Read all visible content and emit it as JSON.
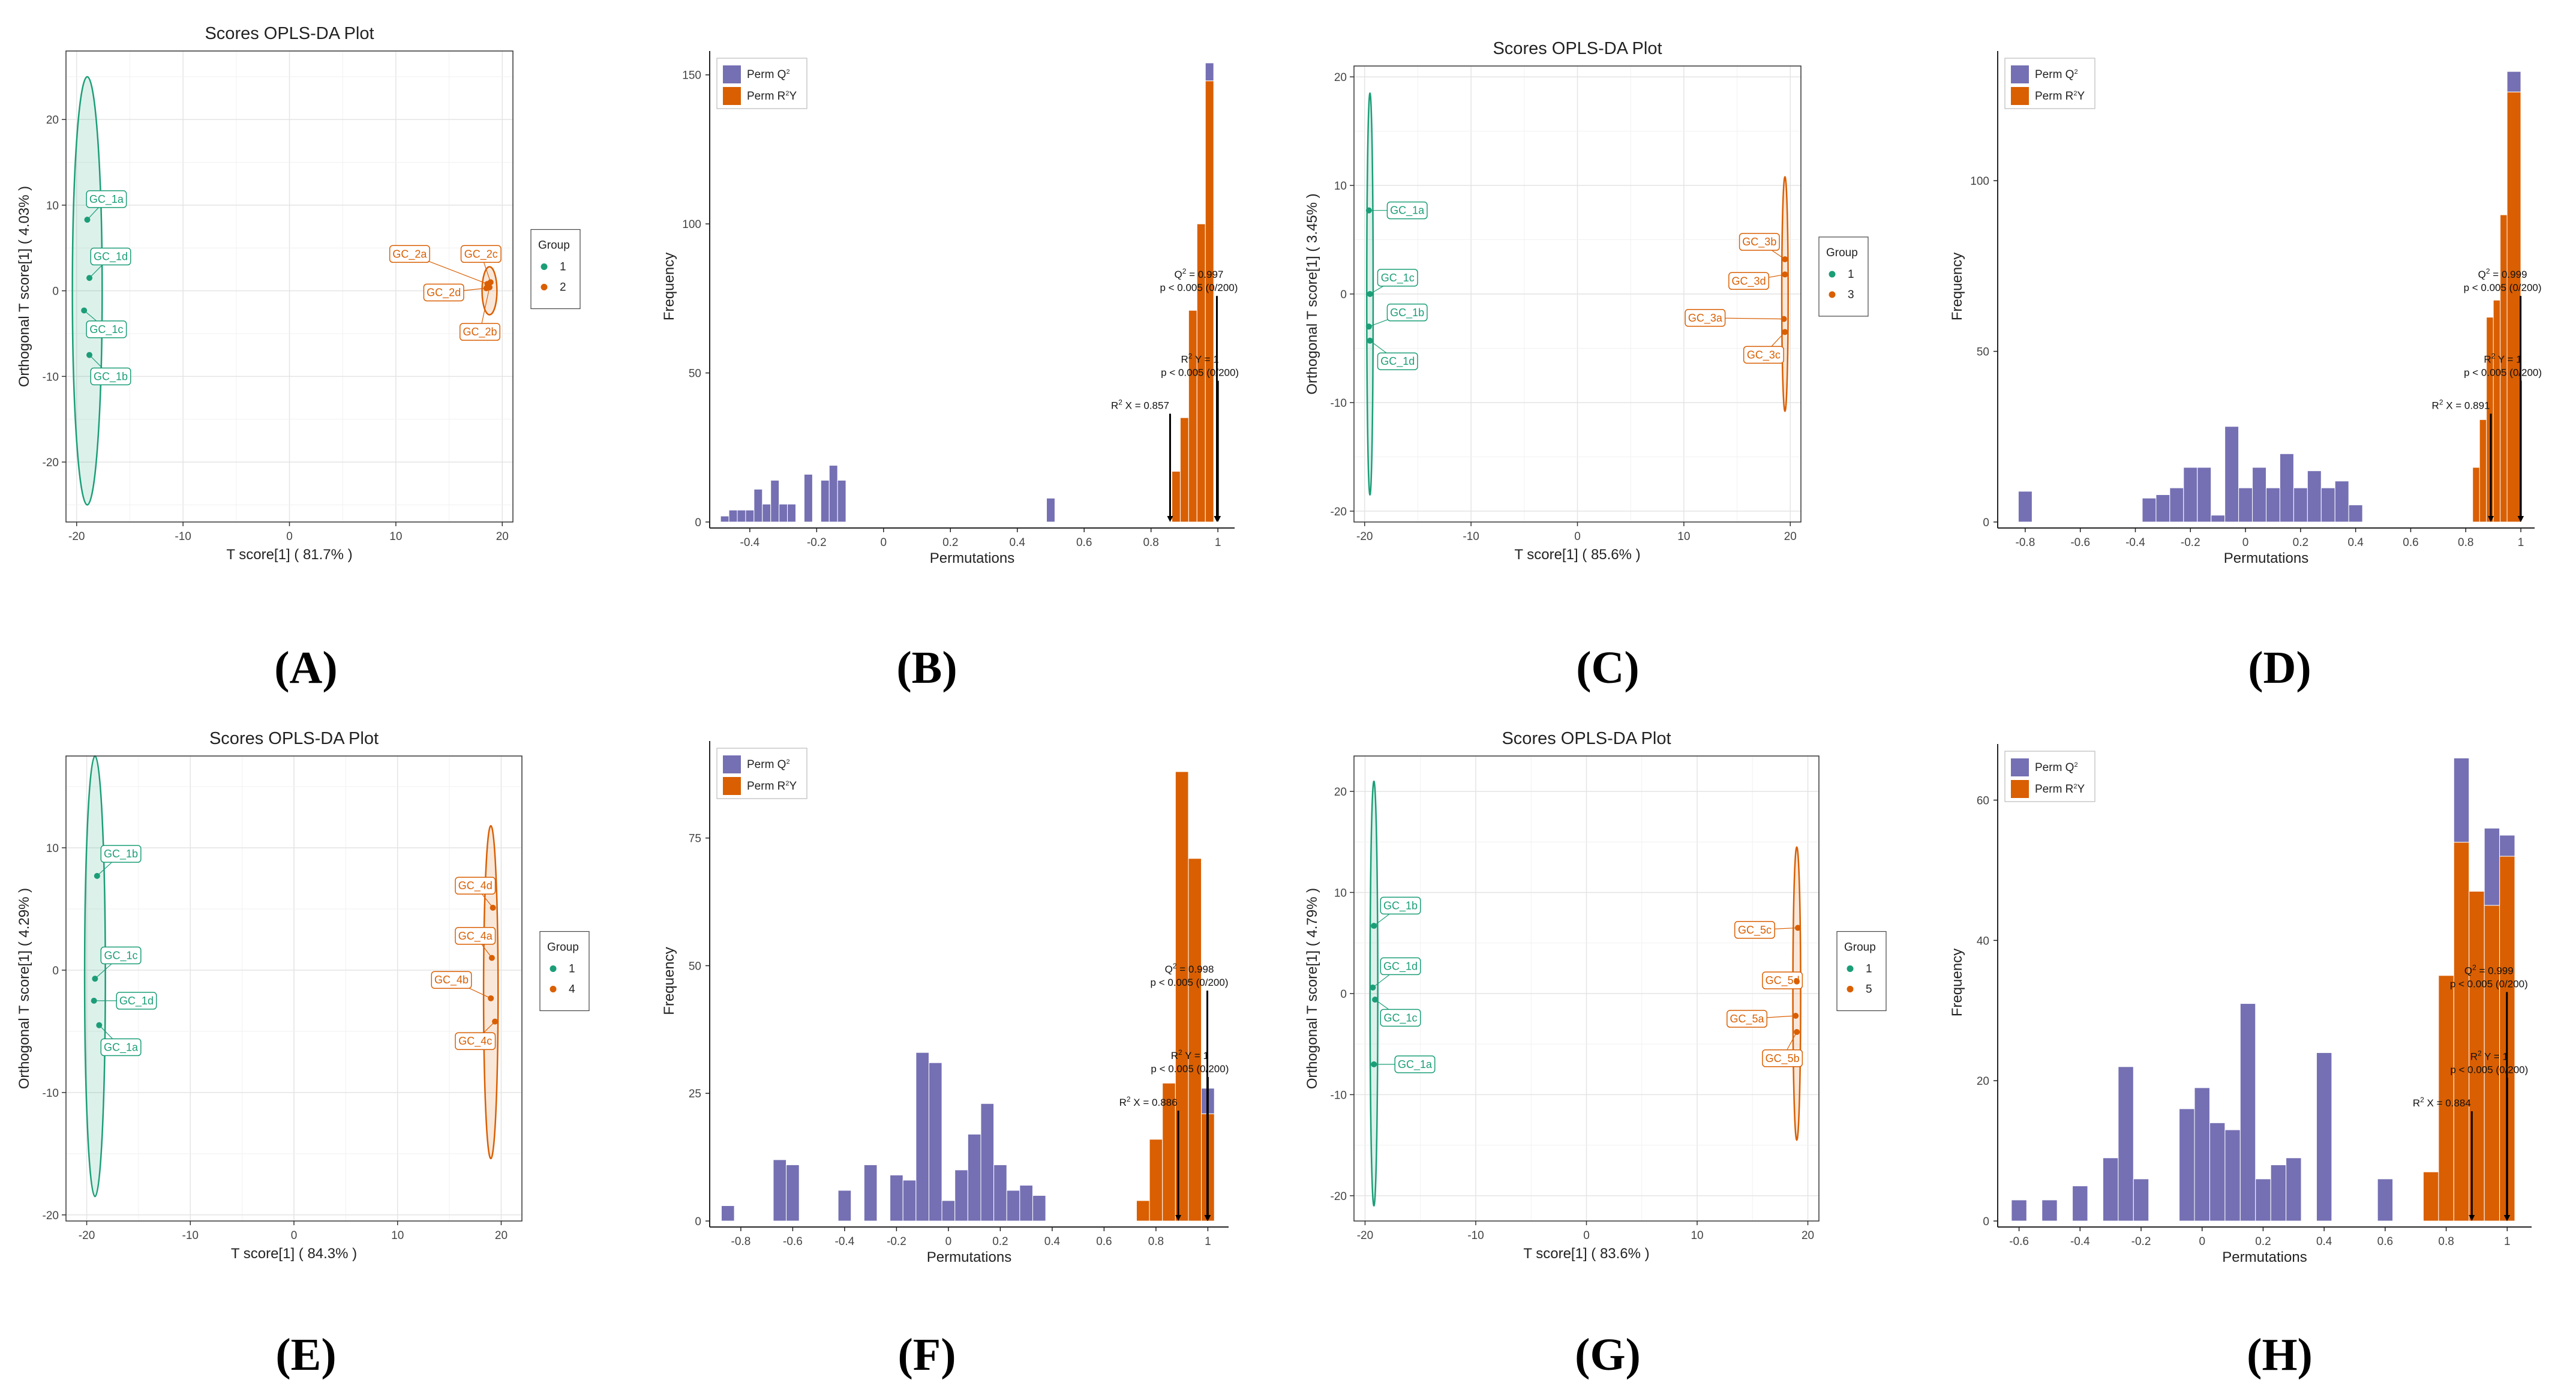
{
  "colors": {
    "group1": "#1b9e77",
    "groupB": "#d95f02",
    "permQ2": "#7570b3",
    "permR2Y": "#d95f02"
  },
  "captions": [
    "(A)",
    "(B)",
    "(C)",
    "(D)",
    "(E)",
    "(F)",
    "(G)",
    "(H)"
  ],
  "chart_data": [
    {
      "type": "scatter",
      "panel": "A",
      "title": "Scores OPLS-DA Plot",
      "xlabel": "T score[1] ( 81.7% )",
      "ylabel": "Orthogonal T score[1] ( 4.03% )",
      "xlim": [
        -21,
        21
      ],
      "ylim": [
        -27,
        28
      ],
      "xticks": [
        -20,
        -10,
        0,
        10,
        20
      ],
      "yticks": [
        -20,
        -10,
        0,
        10,
        20
      ],
      "legend": {
        "title": "Group",
        "entries": [
          "1",
          "2"
        ],
        "position": "right"
      },
      "grid": true,
      "ellipses": [
        {
          "group": 0,
          "cx": -19,
          "cy": 0,
          "rx": 1.4,
          "ry": 25
        },
        {
          "group": 1,
          "cx": 18.8,
          "cy": 0,
          "rx": 0.7,
          "ry": 2.8
        }
      ],
      "points": [
        {
          "label": "GC_1a",
          "x": -19,
          "y": 8.3,
          "group": 0,
          "lx": -17.2,
          "ly": 10.7
        },
        {
          "label": "GC_1d",
          "x": -18.8,
          "y": 1.5,
          "group": 0,
          "lx": -16.8,
          "ly": 4
        },
        {
          "label": "GC_1c",
          "x": -19.3,
          "y": -2.3,
          "group": 0,
          "lx": -17.2,
          "ly": -4.5
        },
        {
          "label": "GC_1b",
          "x": -18.8,
          "y": -7.5,
          "group": 0,
          "lx": -16.8,
          "ly": -10
        },
        {
          "label": "GC_2a",
          "x": 18.6,
          "y": 0.8,
          "group": 1,
          "lx": 11.3,
          "ly": 4.3
        },
        {
          "label": "GC_2c",
          "x": 18.9,
          "y": 1,
          "group": 1,
          "lx": 18,
          "ly": 4.3
        },
        {
          "label": "GC_2d",
          "x": 18.5,
          "y": 0.3,
          "group": 1,
          "lx": 14.5,
          "ly": -0.2
        },
        {
          "label": "GC_2b",
          "x": 18.8,
          "y": 0.4,
          "group": 1,
          "lx": 17.9,
          "ly": -4.8
        }
      ]
    },
    {
      "type": "bar",
      "panel": "B",
      "xlabel": "Permutations",
      "ylabel": "Frequency",
      "xlim": [
        -0.52,
        1.05
      ],
      "ylim": [
        0,
        158
      ],
      "xticks": [
        -0.4,
        -0.2,
        0.0,
        0.2,
        0.4,
        0.6,
        0.8,
        1.0
      ],
      "yticks": [
        0,
        50,
        100,
        150
      ],
      "binwidth": 0.025,
      "legend": {
        "entries": [
          "Perm Q",
          "Perm R"
        ],
        "position": "top-left"
      },
      "series": [
        {
          "name": "Perm Q2",
          "x": [
            -0.475,
            -0.45,
            -0.425,
            -0.4,
            -0.375,
            -0.35,
            -0.325,
            -0.3,
            -0.275,
            -0.25,
            -0.225,
            -0.2,
            -0.175,
            -0.15,
            -0.125,
            -0.1,
            -0.075,
            -0.05,
            -0.025,
            0.0,
            0.025,
            0.05,
            0.075,
            0.1,
            0.125,
            0.15,
            0.175,
            0.2,
            0.225,
            0.25,
            0.275,
            0.3,
            0.325,
            0.35,
            0.375,
            0.4,
            0.425,
            0.45,
            0.475,
            0.5,
            0.975
          ],
          "values": [
            2,
            4,
            4,
            4,
            11,
            6,
            14,
            6,
            6,
            0,
            16,
            0,
            14,
            19,
            14,
            0,
            0,
            0,
            0,
            0,
            0,
            0,
            0,
            0,
            0,
            0,
            0,
            0,
            0,
            0,
            0,
            0,
            0,
            0,
            0,
            0,
            0,
            0,
            0,
            8,
            6
          ]
        },
        {
          "name": "Perm R2Y",
          "x": [
            0.875,
            0.9,
            0.925,
            0.95,
            0.975
          ],
          "values": [
            17,
            35,
            71,
            100,
            148
          ]
        }
      ],
      "annotations": [
        {
          "lines": [
            "Q² = 0.997",
            "p < 0.005 (0/200)"
          ],
          "x": 0.997
        },
        {
          "lines": [
            "R² Y = 1",
            "p < 0.005 (0/200)"
          ],
          "x": 1.0
        },
        {
          "lines": [
            "R² X = 0.857"
          ],
          "x": 0.857
        }
      ]
    },
    {
      "type": "scatter",
      "panel": "C",
      "title": "Scores OPLS-DA Plot",
      "xlabel": "T score[1] ( 85.6% )",
      "ylabel": "Orthogonal T score[1] ( 3.45% )",
      "xlim": [
        -21,
        21
      ],
      "ylim": [
        -21,
        21
      ],
      "xticks": [
        -20,
        -10,
        0,
        10,
        20
      ],
      "yticks": [
        -20,
        -10,
        0,
        10,
        20
      ],
      "legend": {
        "title": "Group",
        "entries": [
          "1",
          "3"
        ],
        "position": "right"
      },
      "grid": true,
      "ellipses": [
        {
          "group": 0,
          "cx": -19.5,
          "cy": 0,
          "rx": 0.3,
          "ry": 18.5
        },
        {
          "group": 1,
          "cx": 19.5,
          "cy": 0,
          "rx": 0.3,
          "ry": 10.8
        }
      ],
      "points": [
        {
          "label": "GC_1a",
          "x": -19.6,
          "y": 7.7,
          "group": 0,
          "lx": -16,
          "ly": 7.7
        },
        {
          "label": "GC_1c",
          "x": -19.5,
          "y": 0,
          "group": 0,
          "lx": -16.9,
          "ly": 1.5
        },
        {
          "label": "GC_1b",
          "x": -19.6,
          "y": -3,
          "group": 0,
          "lx": -16,
          "ly": -1.7
        },
        {
          "label": "GC_1d",
          "x": -19.5,
          "y": -4.3,
          "group": 0,
          "lx": -16.9,
          "ly": -6.2
        },
        {
          "label": "GC_3b",
          "x": 19.5,
          "y": 3.2,
          "group": 1,
          "lx": 17.1,
          "ly": 4.8
        },
        {
          "label": "GC_3d",
          "x": 19.5,
          "y": 1.8,
          "group": 1,
          "lx": 16.1,
          "ly": 1.2
        },
        {
          "label": "GC_3a",
          "x": 19.4,
          "y": -2.3,
          "group": 1,
          "lx": 12,
          "ly": -2.2
        },
        {
          "label": "GC_3c",
          "x": 19.5,
          "y": -3.5,
          "group": 1,
          "lx": 17.5,
          "ly": -5.6
        }
      ]
    },
    {
      "type": "bar",
      "panel": "D",
      "xlabel": "Permutations",
      "ylabel": "Frequency",
      "xlim": [
        -0.9,
        1.05
      ],
      "ylim": [
        0,
        138
      ],
      "xticks": [
        -0.8,
        -0.6,
        -0.4,
        -0.2,
        0.0,
        0.2,
        0.4,
        0.6,
        0.8,
        1.0
      ],
      "yticks": [
        0,
        50,
        100
      ],
      "binwidth": 0.05,
      "legend": {
        "entries": [
          "Perm Q",
          "Perm R"
        ],
        "position": "top-left"
      },
      "series": [
        {
          "name": "Perm Q2",
          "x": [
            -0.8,
            -0.35,
            -0.3,
            -0.25,
            -0.2,
            -0.15,
            -0.1,
            -0.05,
            0.0,
            0.05,
            0.1,
            0.15,
            0.2,
            0.25,
            0.3,
            0.35,
            0.4,
            0.45,
            0.975
          ],
          "values": [
            9,
            7,
            8,
            10,
            16,
            16,
            2,
            28,
            10,
            16,
            10,
            20,
            10,
            15,
            10,
            12,
            5,
            0,
            6
          ]
        },
        {
          "name": "Perm R2Y",
          "x": [
            0.85,
            0.875,
            0.9,
            0.925,
            0.95,
            0.975
          ],
          "values": [
            16,
            30,
            60,
            65,
            90,
            126
          ]
        }
      ],
      "annotations": [
        {
          "lines": [
            "Q² = 0.999",
            "p < 0.005 (0/200)"
          ],
          "x": 0.999
        },
        {
          "lines": [
            "R² Y = 1",
            "p < 0.005 (0/200)"
          ],
          "x": 1.0
        },
        {
          "lines": [
            "R² X = 0.891"
          ],
          "x": 0.891
        }
      ]
    },
    {
      "type": "scatter",
      "panel": "E",
      "title": "Scores OPLS-DA Plot",
      "xlabel": "T score[1] ( 84.3% )",
      "ylabel": "Orthogonal T score[1] ( 4.29% )",
      "xlim": [
        -22,
        22
      ],
      "ylim": [
        -20.5,
        17.5
      ],
      "xticks": [
        -20,
        -10,
        0,
        10,
        20
      ],
      "yticks": [
        -20,
        -10,
        0,
        10
      ],
      "legend": {
        "title": "Group",
        "entries": [
          "1",
          "4"
        ],
        "position": "right"
      },
      "grid": true,
      "ellipses": [
        {
          "group": 0,
          "cx": -19.2,
          "cy": -0.5,
          "rx": 1,
          "ry": 18
        },
        {
          "group": 1,
          "cx": 19,
          "cy": -1.8,
          "rx": 0.7,
          "ry": 13.6
        }
      ],
      "points": [
        {
          "label": "GC_1b",
          "x": -19,
          "y": 7.7,
          "group": 0,
          "lx": -16.7,
          "ly": 9.5
        },
        {
          "label": "GC_1c",
          "x": -19.2,
          "y": -0.7,
          "group": 0,
          "lx": -16.7,
          "ly": 1.2
        },
        {
          "label": "GC_1d",
          "x": -19.3,
          "y": -2.5,
          "group": 0,
          "lx": -15.2,
          "ly": -2.5
        },
        {
          "label": "GC_1a",
          "x": -18.8,
          "y": -4.5,
          "group": 0,
          "lx": -16.7,
          "ly": -6.3
        },
        {
          "label": "GC_4d",
          "x": 19.2,
          "y": 5.1,
          "group": 1,
          "lx": 17.5,
          "ly": 6.9
        },
        {
          "label": "GC_4a",
          "x": 19.1,
          "y": 1,
          "group": 1,
          "lx": 17.5,
          "ly": 2.8
        },
        {
          "label": "GC_4b",
          "x": 19,
          "y": -2.3,
          "group": 1,
          "lx": 15.2,
          "ly": -0.8
        },
        {
          "label": "GC_4c",
          "x": 19.4,
          "y": -4.2,
          "group": 1,
          "lx": 17.5,
          "ly": -5.8
        }
      ]
    },
    {
      "type": "bar",
      "panel": "F",
      "xlabel": "Permutations",
      "ylabel": "Frequency",
      "xlim": [
        -0.92,
        1.08
      ],
      "ylim": [
        0,
        94
      ],
      "xticks": [
        -0.8,
        -0.6,
        -0.4,
        -0.2,
        0.0,
        0.2,
        0.4,
        0.6,
        0.8,
        1.0
      ],
      "yticks": [
        0,
        25,
        50,
        75
      ],
      "binwidth": 0.05,
      "legend": {
        "entries": [
          "Perm Q",
          "Perm R"
        ],
        "position": "top-left"
      },
      "series": [
        {
          "name": "Perm Q2",
          "x": [
            -0.85,
            -0.65,
            -0.6,
            -0.4,
            -0.3,
            -0.2,
            -0.15,
            -0.1,
            -0.05,
            0.0,
            0.05,
            0.1,
            0.15,
            0.2,
            0.25,
            0.3,
            0.35,
            0.4,
            0.45,
            0.5,
            1.0
          ],
          "values": [
            3,
            12,
            11,
            6,
            11,
            9,
            8,
            33,
            31,
            4,
            10,
            17,
            23,
            11,
            6,
            7,
            5,
            0,
            0,
            0,
            5
          ]
        },
        {
          "name": "Perm R2Y",
          "x": [
            0.75,
            0.8,
            0.85,
            0.9,
            0.95,
            1.0
          ],
          "values": [
            4,
            16,
            27,
            88,
            71,
            21
          ]
        }
      ],
      "annotations": [
        {
          "lines": [
            "Q² = 0.998",
            "p < 0.005 (0/200)"
          ],
          "x": 0.998
        },
        {
          "lines": [
            "R² Y = 1",
            "p < 0.005 (0/200)"
          ],
          "x": 1.0
        },
        {
          "lines": [
            "R² X = 0.886"
          ],
          "x": 0.886
        }
      ]
    },
    {
      "type": "scatter",
      "panel": "G",
      "title": "Scores OPLS-DA Plot",
      "xlabel": "T score[1] ( 83.6% )",
      "ylabel": "Orthogonal T score[1] ( 4.79% )",
      "xlim": [
        -21,
        21
      ],
      "ylim": [
        -22.5,
        23.5
      ],
      "xticks": [
        -20,
        -10,
        0,
        10,
        20
      ],
      "yticks": [
        -20,
        -10,
        0,
        10,
        20
      ],
      "legend": {
        "title": "Group",
        "entries": [
          "1",
          "5"
        ],
        "position": "right"
      },
      "grid": true,
      "ellipses": [
        {
          "group": 0,
          "cx": -19.2,
          "cy": 0,
          "rx": 0.35,
          "ry": 21
        },
        {
          "group": 1,
          "cx": 19,
          "cy": 0,
          "rx": 0.35,
          "ry": 14.5
        }
      ],
      "points": [
        {
          "label": "GC_1b",
          "x": -19.2,
          "y": 6.7,
          "group": 0,
          "lx": -16.8,
          "ly": 8.7
        },
        {
          "label": "GC_1d",
          "x": -19.3,
          "y": 0.6,
          "group": 0,
          "lx": -16.8,
          "ly": 2.7
        },
        {
          "label": "GC_1c",
          "x": -19.1,
          "y": -0.6,
          "group": 0,
          "lx": -16.8,
          "ly": -2.4
        },
        {
          "label": "GC_1a",
          "x": -19.2,
          "y": -7,
          "group": 0,
          "lx": -15.5,
          "ly": -7
        },
        {
          "label": "GC_5c",
          "x": 19.1,
          "y": 6.5,
          "group": 1,
          "lx": 15.2,
          "ly": 6.3
        },
        {
          "label": "GC_5d",
          "x": 19,
          "y": 1.2,
          "group": 1,
          "lx": 17.7,
          "ly": 1.3
        },
        {
          "label": "GC_5a",
          "x": 18.9,
          "y": -2.2,
          "group": 1,
          "lx": 14.5,
          "ly": -2.5
        },
        {
          "label": "GC_5b",
          "x": 19,
          "y": -3.8,
          "group": 1,
          "lx": 17.7,
          "ly": -6.4
        }
      ]
    },
    {
      "type": "bar",
      "panel": "H",
      "xlabel": "Permutations",
      "ylabel": "Frequency",
      "xlim": [
        -0.67,
        1.08
      ],
      "ylim": [
        0,
        68
      ],
      "xticks": [
        -0.6,
        -0.4,
        -0.2,
        0.0,
        0.2,
        0.4,
        0.6,
        0.8,
        1.0
      ],
      "yticks": [
        0,
        20,
        40,
        60
      ],
      "binwidth": 0.05,
      "legend": {
        "entries": [
          "Perm Q",
          "Perm R"
        ],
        "position": "top-left"
      },
      "series": [
        {
          "name": "Perm Q2",
          "x": [
            -0.6,
            -0.5,
            -0.4,
            -0.3,
            -0.25,
            -0.2,
            -0.05,
            0.0,
            0.05,
            0.1,
            0.15,
            0.2,
            0.25,
            0.3,
            0.35,
            0.4,
            0.6,
            0.85,
            0.95,
            1.0
          ],
          "values": [
            3,
            3,
            5,
            9,
            22,
            6,
            16,
            19,
            14,
            13,
            31,
            6,
            8,
            9,
            0,
            24,
            6,
            12,
            11,
            3
          ]
        },
        {
          "name": "Perm R2Y",
          "x": [
            0.75,
            0.8,
            0.85,
            0.9,
            0.95,
            1.0
          ],
          "values": [
            7,
            35,
            54,
            47,
            45,
            52
          ]
        }
      ],
      "annotations": [
        {
          "lines": [
            "Q² = 0.999",
            "p < 0.005 (0/200)"
          ],
          "x": 0.999
        },
        {
          "lines": [
            "R² Y = 1",
            "p < 0.005 (0/200)"
          ],
          "x": 1.0
        },
        {
          "lines": [
            "R² X = 0.884"
          ],
          "x": 0.884
        }
      ]
    }
  ]
}
